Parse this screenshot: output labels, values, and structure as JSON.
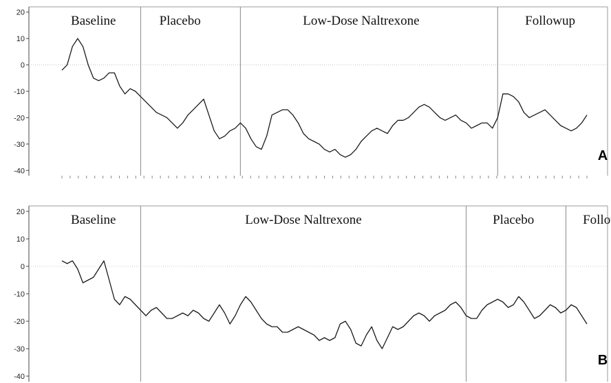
{
  "chart_data": [
    {
      "type": "line",
      "panel_label": "A",
      "ylim": [
        -42,
        22
      ],
      "y_ticks": [
        20,
        10,
        0,
        -10,
        -20,
        -30,
        -40
      ],
      "zero_line": true,
      "x_range": [
        0,
        100
      ],
      "phase_boundaries": [
        15,
        34,
        83
      ],
      "phases": [
        {
          "label": "Baseline",
          "center": 6
        },
        {
          "label": "Placebo",
          "center": 22.5
        },
        {
          "label": "Low-Dose Naltrexone",
          "center": 57
        },
        {
          "label": "Followup",
          "center": 93
        }
      ],
      "series": [
        {
          "x": [
            0,
            1,
            2,
            3,
            4,
            5,
            6,
            7,
            8,
            9,
            10,
            11,
            12,
            13,
            14,
            15,
            16,
            17,
            18,
            19,
            20,
            21,
            22,
            23,
            24,
            25,
            26,
            27,
            28,
            29,
            30,
            31,
            32,
            33,
            34,
            35,
            36,
            37,
            38,
            39,
            40,
            41,
            42,
            43,
            44,
            45,
            46,
            47,
            48,
            49,
            50,
            51,
            52,
            53,
            54,
            55,
            56,
            57,
            58,
            59,
            60,
            61,
            62,
            63,
            64,
            65,
            66,
            67,
            68,
            69,
            70,
            71,
            72,
            73,
            74,
            75,
            76,
            77,
            78,
            79,
            80,
            81,
            82,
            83,
            84,
            85,
            86,
            87,
            88,
            89,
            90,
            91,
            92,
            93,
            94,
            95,
            96,
            97,
            98,
            99,
            100
          ],
          "y": [
            -2,
            0,
            7,
            10,
            7,
            0,
            -5,
            -6,
            -5,
            -3,
            -3,
            -8,
            -11,
            -9,
            -10,
            -12,
            -14,
            -16,
            -18,
            -19,
            -20,
            -22,
            -24,
            -22,
            -19,
            -17,
            -15,
            -13,
            -19,
            -25,
            -28,
            -27,
            -25,
            -24,
            -22,
            -24,
            -28,
            -31,
            -32,
            -27,
            -19,
            -18,
            -17,
            -17,
            -19,
            -22,
            -26,
            -28,
            -29,
            -30,
            -32,
            -33,
            -32,
            -34,
            -35,
            -34,
            -32,
            -29,
            -27,
            -25,
            -24,
            -25,
            -26,
            -23,
            -21,
            -21,
            -20,
            -18,
            -16,
            -15,
            -16,
            -18,
            -20,
            -21,
            -20,
            -19,
            -21,
            -22,
            -24,
            -23,
            -22,
            -22,
            -24,
            -20,
            -11,
            -11,
            -12,
            -14,
            -18,
            -20,
            -19,
            -18,
            -17,
            -19,
            -21,
            -23,
            -24,
            -25,
            -24,
            -22,
            -19
          ]
        }
      ]
    },
    {
      "type": "line",
      "panel_label": "B",
      "ylim": [
        -42,
        22
      ],
      "y_ticks": [
        20,
        10,
        0,
        -10,
        -20,
        -30,
        -40
      ],
      "zero_line": true,
      "x_range": [
        0,
        100
      ],
      "phase_boundaries": [
        15,
        77,
        96
      ],
      "phases": [
        {
          "label": "Baseline",
          "center": 6
        },
        {
          "label": "Low-Dose Naltrexone",
          "center": 46
        },
        {
          "label": "Placebo",
          "center": 86
        },
        {
          "label": "Followup",
          "center": 104
        }
      ],
      "series": [
        {
          "x": [
            0,
            1,
            2,
            3,
            4,
            5,
            6,
            7,
            8,
            9,
            10,
            11,
            12,
            13,
            14,
            15,
            16,
            17,
            18,
            19,
            20,
            21,
            22,
            23,
            24,
            25,
            26,
            27,
            28,
            29,
            30,
            31,
            32,
            33,
            34,
            35,
            36,
            37,
            38,
            39,
            40,
            41,
            42,
            43,
            44,
            45,
            46,
            47,
            48,
            49,
            50,
            51,
            52,
            53,
            54,
            55,
            56,
            57,
            58,
            59,
            60,
            61,
            62,
            63,
            64,
            65,
            66,
            67,
            68,
            69,
            70,
            71,
            72,
            73,
            74,
            75,
            76,
            77,
            78,
            79,
            80,
            81,
            82,
            83,
            84,
            85,
            86,
            87,
            88,
            89,
            90,
            91,
            92,
            93,
            94,
            95,
            96,
            97,
            98,
            99,
            100
          ],
          "y": [
            2,
            1,
            2,
            -1,
            -6,
            -5,
            -4,
            -1,
            2,
            -5,
            -12,
            -14,
            -11,
            -12,
            -14,
            -16,
            -18,
            -16,
            -15,
            -17,
            -19,
            -19,
            -18,
            -17,
            -18,
            -16,
            -17,
            -19,
            -20,
            -17,
            -14,
            -17,
            -21,
            -18,
            -14,
            -11,
            -13,
            -16,
            -19,
            -21,
            -22,
            -22,
            -24,
            -24,
            -23,
            -22,
            -23,
            -24,
            -25,
            -27,
            -26,
            -27,
            -26,
            -21,
            -20,
            -23,
            -28,
            -29,
            -25,
            -22,
            -27,
            -30,
            -26,
            -22,
            -23,
            -22,
            -20,
            -18,
            -17,
            -18,
            -20,
            -18,
            -17,
            -16,
            -14,
            -13,
            -15,
            -18,
            -19,
            -19,
            -16,
            -14,
            -13,
            -12,
            -13,
            -15,
            -14,
            -11,
            -13,
            -16,
            -19,
            -18,
            -16,
            -14,
            -15,
            -17,
            -16,
            -14,
            -15,
            -18,
            -21
          ]
        }
      ]
    }
  ]
}
